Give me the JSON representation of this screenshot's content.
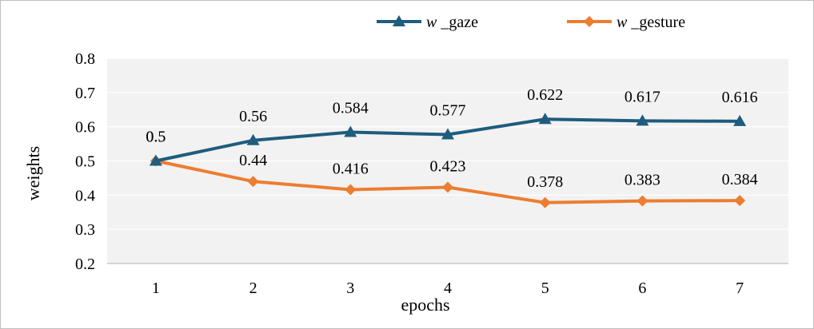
{
  "chart_data": {
    "type": "line",
    "x": [
      1,
      2,
      3,
      4,
      5,
      6,
      7
    ],
    "categories": [
      "1",
      "2",
      "3",
      "4",
      "5",
      "6",
      "7"
    ],
    "series": [
      {
        "name": "w _gaze",
        "name_italic": "w",
        "name_rest": " _gaze",
        "values": [
          0.5,
          0.56,
          0.584,
          0.577,
          0.622,
          0.617,
          0.616
        ],
        "labels": [
          "0.5",
          "0.56",
          "0.584",
          "0.577",
          "0.622",
          "0.617",
          "0.616"
        ],
        "color": "#1f5c7e",
        "marker": "triangle"
      },
      {
        "name": "w _gesture",
        "name_italic": "w",
        "name_rest": " _gesture",
        "values": [
          0.5,
          0.44,
          0.416,
          0.423,
          0.378,
          0.383,
          0.384
        ],
        "labels": [
          "0.5",
          "0.44",
          "0.416",
          "0.423",
          "0.378",
          "0.383",
          "0.384"
        ],
        "color": "#ed7d31",
        "marker": "diamond"
      }
    ],
    "title": "",
    "xlabel": "epochs",
    "ylabel": "weights",
    "ylim": [
      0.2,
      0.8
    ],
    "yticks": [
      "0.2",
      "0.3",
      "0.4",
      "0.5",
      "0.6",
      "0.7",
      "0.8"
    ],
    "grid": true,
    "legend_position": "top",
    "plot_background": "#f2f2f2"
  }
}
